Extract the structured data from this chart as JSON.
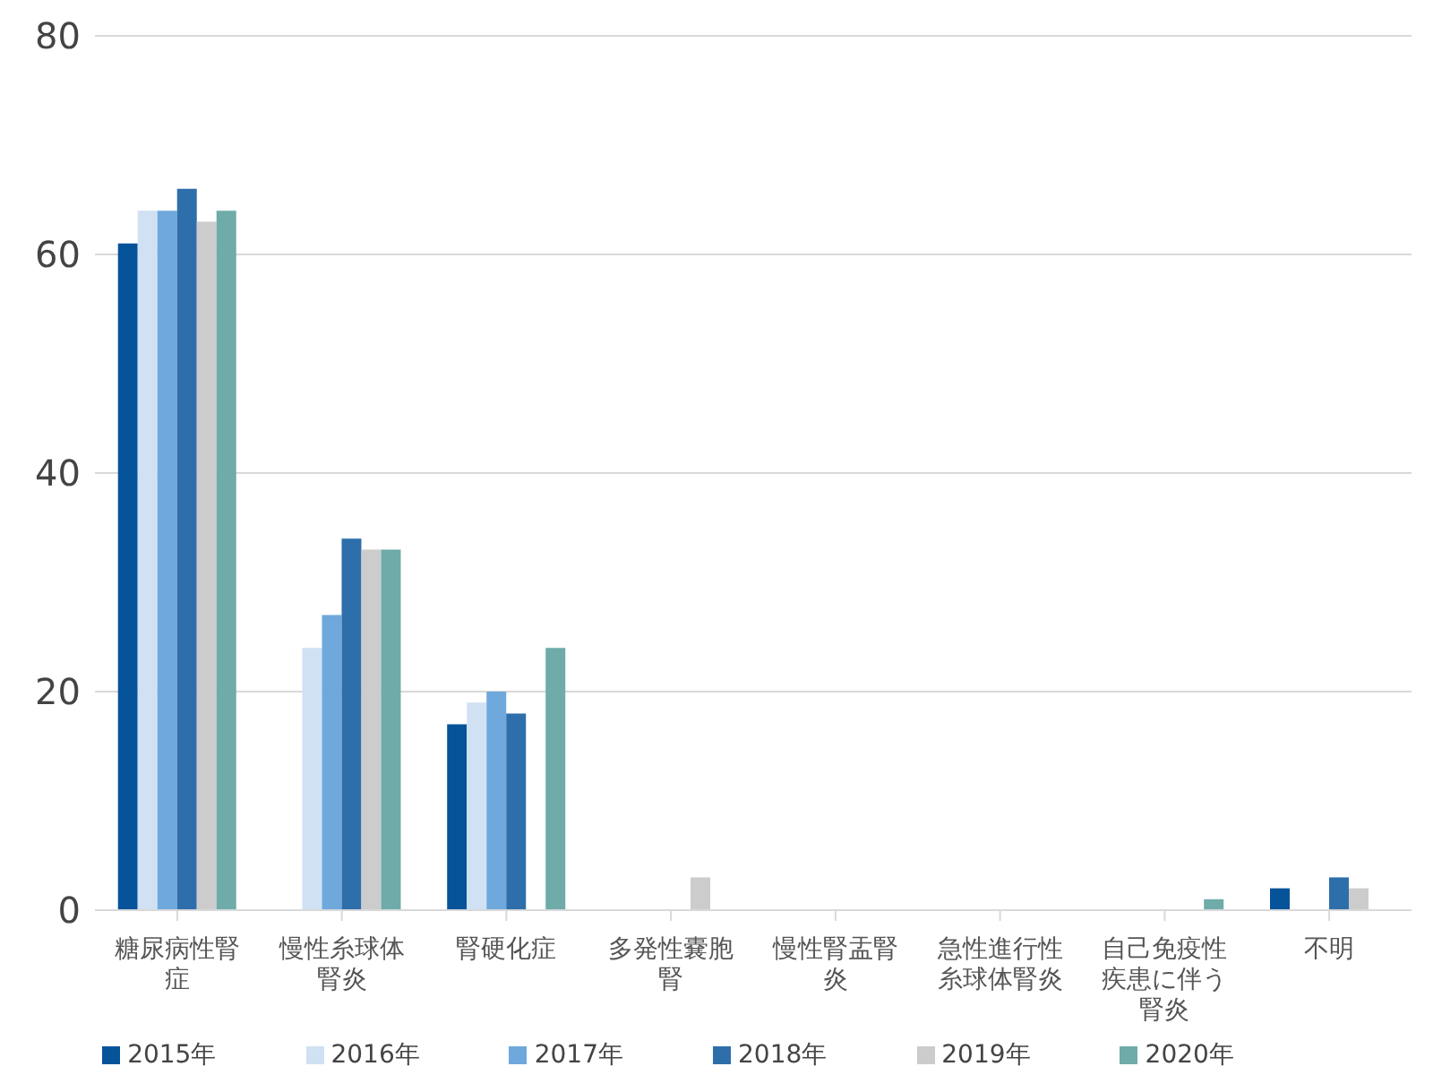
{
  "chart_data": {
    "type": "bar",
    "categories": [
      "糖尿病性腎症",
      "慢性糸球体腎炎",
      "腎硬化症",
      "多発性嚢胞腎",
      "慢性腎盂腎炎",
      "急性進行性糸球体腎炎",
      "自己免疫性疾患に伴う腎炎",
      "不明"
    ],
    "series": [
      {
        "name": "2015年",
        "color": "#06539a",
        "values": [
          61,
          0,
          17,
          0,
          0,
          0,
          0,
          2
        ]
      },
      {
        "name": "2016年",
        "color": "#cfe1f3",
        "values": [
          64,
          24,
          19,
          0,
          0,
          0,
          0,
          0
        ]
      },
      {
        "name": "2017年",
        "color": "#6fa8dc",
        "values": [
          64,
          27,
          20,
          0,
          0,
          0,
          0,
          0
        ]
      },
      {
        "name": "2018年",
        "color": "#2e6eab",
        "values": [
          66,
          34,
          18,
          0,
          0,
          0,
          0,
          3
        ]
      },
      {
        "name": "2019年",
        "color": "#cccccc",
        "values": [
          63,
          33,
          0,
          3,
          0,
          0,
          0,
          2
        ]
      },
      {
        "name": "2020年",
        "color": "#6eaba9",
        "values": [
          64,
          33,
          24,
          0,
          0,
          0,
          1,
          0
        ]
      }
    ],
    "ylim": [
      0,
      80
    ],
    "yticks": [
      0,
      20,
      40,
      60,
      80
    ],
    "grid": "y",
    "legend": "bottom"
  }
}
